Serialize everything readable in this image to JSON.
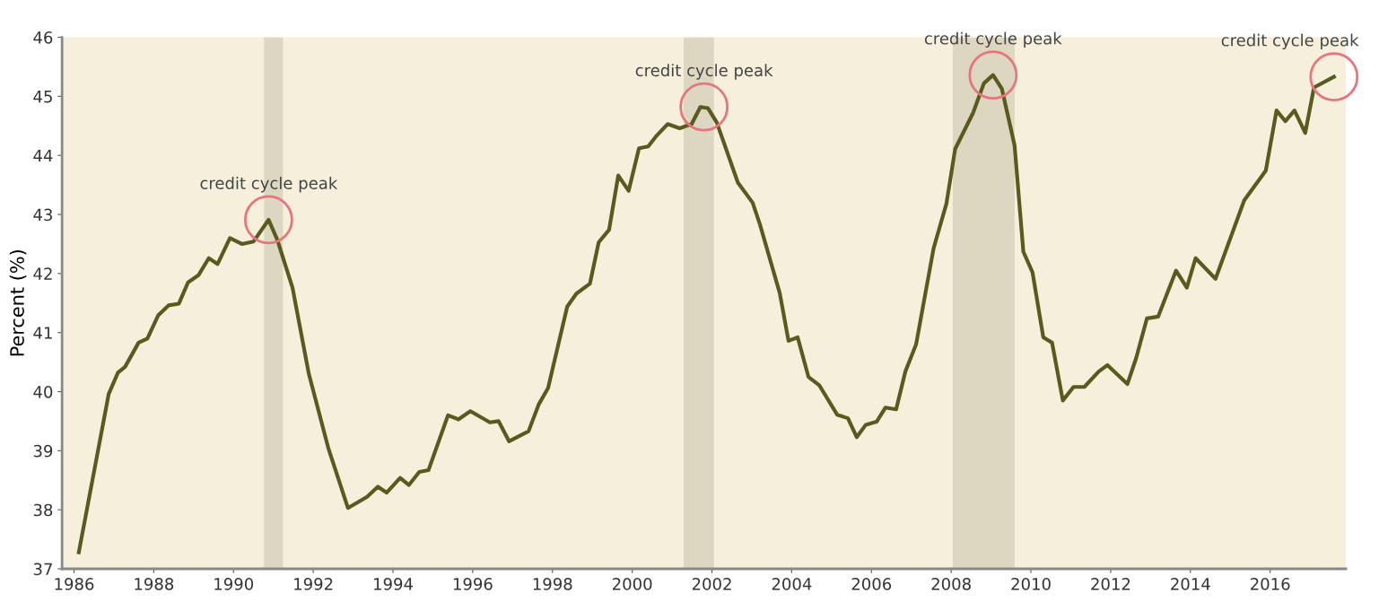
{
  "chart_data": {
    "type": "line",
    "ylabel": "Percent (%)",
    "x": [
      1986.12,
      1986.87,
      1987.1,
      1987.28,
      1987.62,
      1987.84,
      1988.11,
      1988.37,
      1988.63,
      1988.86,
      1989.12,
      1989.38,
      1989.6,
      1989.91,
      1990.21,
      1990.5,
      1990.88,
      1991.1,
      1991.48,
      1991.89,
      1992.38,
      1992.87,
      1993.35,
      1993.62,
      1993.84,
      1994.18,
      1994.4,
      1994.66,
      1994.89,
      1995.38,
      1995.64,
      1995.94,
      1996.43,
      1996.65,
      1996.91,
      1997.4,
      1997.66,
      1997.89,
      1998.37,
      1998.6,
      1998.94,
      1999.16,
      1999.42,
      1999.65,
      1999.91,
      2000.17,
      2000.4,
      2000.62,
      2000.89,
      2001.19,
      2001.49,
      2001.71,
      2001.9,
      2002.12,
      2002.65,
      2003.02,
      2003.2,
      2003.7,
      2003.92,
      2004.15,
      2004.42,
      2004.69,
      2005.14,
      2005.41,
      2005.63,
      2005.86,
      2006.13,
      2006.35,
      2006.62,
      2006.85,
      2007.12,
      2007.56,
      2007.88,
      2008.1,
      2008.55,
      2008.82,
      2009.05,
      2009.27,
      2009.59,
      2009.81,
      2010.04,
      2010.31,
      2010.53,
      2010.8,
      2011.07,
      2011.34,
      2011.7,
      2011.92,
      2012.42,
      2012.64,
      2012.91,
      2013.19,
      2013.64,
      2013.91,
      2014.13,
      2014.63,
      2015.35,
      2015.89,
      2016.16,
      2016.38,
      2016.61,
      2016.88,
      2017.1,
      2017.6
    ],
    "series": [
      {
        "color": "#5a5a1e",
        "values": [
          37.28,
          39.96,
          40.32,
          40.42,
          40.83,
          40.9,
          41.29,
          41.46,
          41.49,
          41.85,
          41.97,
          42.26,
          42.16,
          42.6,
          42.5,
          42.54,
          42.91,
          42.57,
          41.76,
          40.3,
          39.04,
          38.03,
          38.22,
          38.39,
          38.29,
          38.54,
          38.42,
          38.64,
          38.67,
          39.6,
          39.53,
          39.67,
          39.48,
          39.5,
          39.16,
          39.33,
          39.79,
          40.06,
          41.44,
          41.66,
          41.83,
          42.53,
          42.74,
          43.66,
          43.4,
          44.12,
          44.15,
          44.34,
          44.53,
          44.46,
          44.53,
          44.82,
          44.8,
          44.56,
          43.54,
          43.2,
          42.84,
          41.67,
          40.86,
          40.92,
          40.25,
          40.11,
          39.61,
          39.55,
          39.23,
          39.44,
          39.49,
          39.73,
          39.7,
          40.34,
          40.8,
          42.43,
          43.18,
          44.11,
          44.72,
          45.22,
          45.36,
          45.13,
          44.17,
          42.37,
          42.02,
          40.92,
          40.83,
          39.85,
          40.08,
          40.08,
          40.34,
          40.45,
          40.13,
          40.57,
          41.24,
          41.27,
          42.05,
          41.76,
          42.26,
          41.91,
          43.24,
          43.74,
          44.76,
          44.58,
          44.76,
          44.38,
          45.15,
          45.33
        ]
      }
    ],
    "xlim": [
      1985.7,
      2017.9
    ],
    "xticks": [
      1986,
      1988,
      1990,
      1992,
      1994,
      1996,
      1998,
      2000,
      2002,
      2004,
      2006,
      2008,
      2010,
      2012,
      2014,
      2016
    ],
    "ylim": [
      37,
      46
    ],
    "yticks": [
      37,
      38,
      39,
      40,
      41,
      42,
      43,
      44,
      45,
      46
    ],
    "bands": [
      {
        "axis": "x",
        "from": 1990.77,
        "to": 1991.24,
        "color": "#ddd6c1"
      },
      {
        "axis": "x",
        "from": 2001.29,
        "to": 2002.05,
        "color": "#ddd6c1"
      },
      {
        "axis": "x",
        "from": 2008.04,
        "to": 2009.59,
        "color": "#ddd6c1"
      }
    ],
    "annotations": [
      {
        "text": "credit cycle peak",
        "x": 1990.88,
        "y": 42.91
      },
      {
        "text": "credit cycle peak",
        "x": 2001.8,
        "y": 44.82
      },
      {
        "text": "credit cycle peak",
        "x": 2009.05,
        "y": 45.36
      },
      {
        "text": "credit cycle peak",
        "x": 2017.6,
        "y": 45.33
      }
    ],
    "grid": false,
    "legend": false,
    "line_style": "solid",
    "marker": "none"
  }
}
